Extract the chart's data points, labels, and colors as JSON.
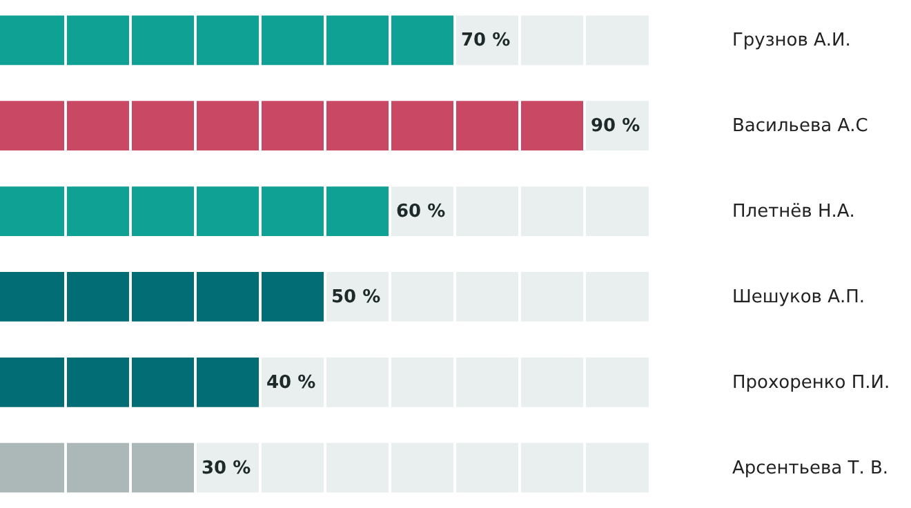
{
  "chart_data": {
    "type": "bar",
    "orientation": "horizontal",
    "stacked": true,
    "categories": [
      "Грузнов А.И.",
      "Васильева А.С",
      "Плетнёв Н.А.",
      "Шешуков А.П.",
      "Прохоренко П.И.",
      "Арсентьева Т. В."
    ],
    "series": [
      {
        "colors": [
          "#10a195",
          "#c94864",
          "#10a195",
          "#026d74",
          "#026d74",
          "#acb8b8"
        ],
        "values": [
          70,
          90,
          60,
          50,
          40,
          30
        ],
        "value_labels": [
          "70 %",
          "90 %",
          "60 %",
          "50 %",
          "40 %",
          "30 %"
        ]
      },
      {
        "color": "#e9eeee",
        "values": [
          30,
          10,
          40,
          50,
          60,
          70
        ]
      }
    ],
    "xlim": [
      0,
      100
    ],
    "xticks": [
      {
        "value": 10,
        "label": null
      },
      {
        "value": 20,
        "label": null
      },
      {
        "value": 30,
        "label": null
      },
      {
        "value": 40,
        "label": null
      },
      {
        "value": 50,
        "label": null
      },
      {
        "value": 60,
        "label": null
      },
      {
        "value": 70,
        "label": null
      },
      {
        "value": 80,
        "label": null
      },
      {
        "value": 90,
        "label": null
      }
    ],
    "grid": "x",
    "tick_labels": "y"
  }
}
